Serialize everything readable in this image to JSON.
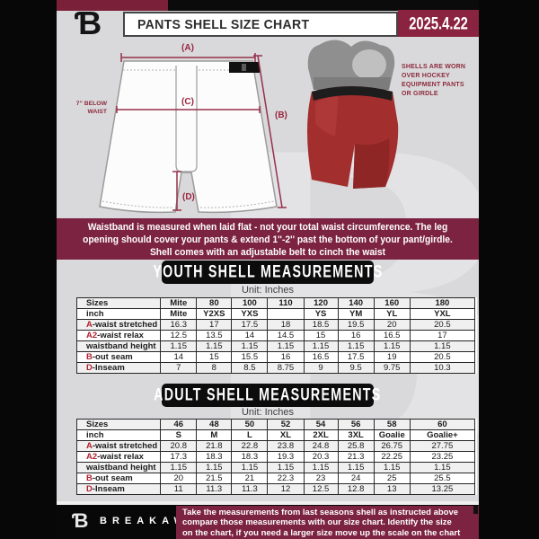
{
  "colors": {
    "maroon_banner": "#7c2342",
    "maroon_top_strip": "#7b2039",
    "maroon_date_box": "#8a2340",
    "measure_line": "#96304a",
    "prefix_red": "#b1202f",
    "page_bg": "#d9d9db",
    "pill_black": "#0c0c0c"
  },
  "header": {
    "logo_glyph": "Ɓ",
    "title": "PANTS SHELL SIZE CHART",
    "date": "2025.4.22"
  },
  "diagram": {
    "label_a": "(A)",
    "label_b": "(B)",
    "label_c": "(C)",
    "label_d": "(D)",
    "below_waist_line1": "7'' BELOW",
    "below_waist_line2": "WAIST",
    "photo_caption_lines": [
      "SHELLS ARE WORN",
      "OVER HOCKEY",
      "EQUIPMENT PANTS",
      "OR GIRDLE"
    ]
  },
  "info_banner": {
    "lines": [
      "Waistband is measured when laid flat - not your total waist circumference. The leg",
      "opening should cover your pants & extend 1''-2'' past the bottom of your pant/girdle.",
      "Shell comes with an adjustable belt to cinch the waist"
    ]
  },
  "youth": {
    "title": "YOUTH SHELL MEASUREMENTS",
    "unit": "Unit: Inches",
    "table": {
      "rows": [
        {
          "prefix": "",
          "label": "Sizes",
          "bold": true,
          "values": [
            "Mite",
            "80",
            "100",
            "110",
            "120",
            "140",
            "160",
            "180"
          ]
        },
        {
          "prefix": "",
          "label": "inch",
          "bold": true,
          "values": [
            "Mite",
            "Y2XS",
            "YXS",
            "",
            "YS",
            "YM",
            "YL",
            "YXL"
          ]
        },
        {
          "prefix": "A",
          "label": "-waist stretched",
          "bold": false,
          "values": [
            "16.3",
            "17",
            "17.5",
            "18",
            "18.5",
            "19.5",
            "20",
            "20.5"
          ]
        },
        {
          "prefix": "A2",
          "label": "-waist relax",
          "bold": false,
          "values": [
            "12.5",
            "13.5",
            "14",
            "14.5",
            "15",
            "16",
            "16.5",
            "17"
          ]
        },
        {
          "prefix": "",
          "label": "waistband height",
          "bold": false,
          "values": [
            "1.15",
            "1.15",
            "1.15",
            "1.15",
            "1.15",
            "1.15",
            "1.15",
            "1.15"
          ]
        },
        {
          "prefix": "B",
          "label": "-out seam",
          "bold": false,
          "values": [
            "14",
            "15",
            "15.5",
            "16",
            "16.5",
            "17.5",
            "19",
            "20.5"
          ]
        },
        {
          "prefix": "D",
          "label": "-Inseam",
          "bold": false,
          "values": [
            "7",
            "8",
            "8.5",
            "8.75",
            "9",
            "9.5",
            "9.75",
            "10.3"
          ]
        }
      ]
    }
  },
  "adult": {
    "title": "ADULT SHELL MEASUREMENTS",
    "unit": "Unit: Inches",
    "table": {
      "rows": [
        {
          "prefix": "",
          "label": "Sizes",
          "bold": true,
          "values": [
            "46",
            "48",
            "50",
            "52",
            "54",
            "56",
            "58",
            "60"
          ]
        },
        {
          "prefix": "",
          "label": "inch",
          "bold": true,
          "values": [
            "S",
            "M",
            "L",
            "XL",
            "2XL",
            "3XL",
            "Goalie",
            "Goalie+"
          ]
        },
        {
          "prefix": "A",
          "label": "-waist stretched",
          "bold": false,
          "values": [
            "20.8",
            "21.8",
            "22.8",
            "23.8",
            "24.8",
            "25.8",
            "26.75",
            "27.75"
          ]
        },
        {
          "prefix": "A2",
          "label": "-waist relax",
          "bold": false,
          "values": [
            "17.3",
            "18.3",
            "18.3",
            "19.3",
            "20.3",
            "21.3",
            "22.25",
            "23.25"
          ]
        },
        {
          "prefix": "",
          "label": "waistband height",
          "bold": false,
          "values": [
            "1.15",
            "1.15",
            "1.15",
            "1.15",
            "1.15",
            "1.15",
            "1.15",
            "1.15"
          ]
        },
        {
          "prefix": "B",
          "label": "-out seam",
          "bold": false,
          "values": [
            "20",
            "21.5",
            "21",
            "22.3",
            "23",
            "24",
            "25",
            "25.5"
          ]
        },
        {
          "prefix": "D",
          "label": "-Inseam",
          "bold": false,
          "values": [
            "11",
            "11.3",
            "11.3",
            "12",
            "12.5",
            "12.8",
            "13",
            "13.25"
          ]
        }
      ]
    }
  },
  "footer": {
    "logo_glyph": "Ɓ",
    "brand": "BREAKAWAY",
    "note_lines": [
      "Take the measurements from last seasons shell as instructed above",
      "compare those measurements  with our size chart. Identify the size",
      "on the chart, if you need a larger size move up the scale on the chart"
    ]
  }
}
